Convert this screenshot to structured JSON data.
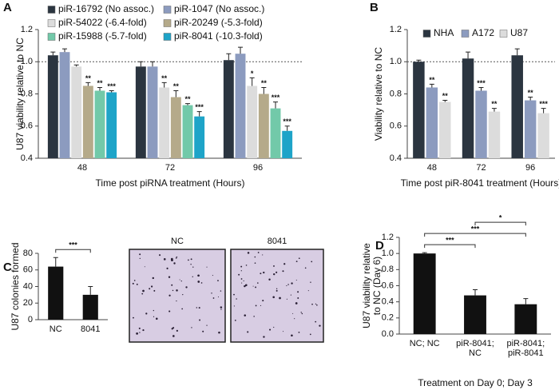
{
  "chart_data": [
    {
      "type": "bar",
      "panel": "A",
      "ylabel": "U87 viability relative to NC",
      "xlabel": "Time post piRNA treatment (Hours)",
      "categories": [
        "48",
        "72",
        "96"
      ],
      "ylim": [
        0.4,
        1.2
      ],
      "yticks": [
        0.4,
        0.6,
        0.8,
        {
          "value": 1,
          "label": "1.0"
        },
        1.2
      ],
      "reference_line": 1,
      "series": [
        {
          "name": "piR-16792 (No assoc.)",
          "color": "#2b3540",
          "values": [
            1.04,
            0.97,
            1.01
          ],
          "errors": [
            0.02,
            0.03,
            0.04
          ],
          "annotations": [
            null,
            null,
            null
          ]
        },
        {
          "name": "piR-1047 (No assoc.)",
          "color": "#8c9bbf",
          "values": [
            1.06,
            0.97,
            1.05
          ],
          "errors": [
            0.02,
            0.03,
            0.04
          ],
          "annotations": [
            null,
            null,
            null
          ]
        },
        {
          "name": "piR-54022 (-6.4-fold)",
          "color": "#dcdcdc",
          "values": [
            0.97,
            0.84,
            0.85
          ],
          "errors": [
            0.01,
            0.03,
            0.05
          ],
          "annotations": [
            null,
            "**",
            "*"
          ]
        },
        {
          "name": "piR-20249 (-5.3-fold)",
          "color": "#b5aa8a",
          "values": [
            0.85,
            0.78,
            0.8
          ],
          "errors": [
            0.02,
            0.04,
            0.04
          ],
          "annotations": [
            "**",
            "**",
            "**"
          ]
        },
        {
          "name": "piR-15988 (-5.7-fold)",
          "color": "#72c9a9",
          "values": [
            0.82,
            0.73,
            0.71
          ],
          "errors": [
            0.02,
            0.01,
            0.04
          ],
          "annotations": [
            "**",
            "**",
            "***"
          ]
        },
        {
          "name": "piR-8041 (-10.3-fold)",
          "color": "#1ea4c8",
          "values": [
            0.81,
            0.66,
            0.57
          ],
          "errors": [
            0.01,
            0.03,
            0.03
          ],
          "annotations": [
            "***",
            "***",
            "***"
          ]
        }
      ]
    },
    {
      "type": "bar",
      "panel": "B",
      "ylabel": "Viability relative to NC",
      "xlabel": "Time post piR-8041 treatment (Hours)",
      "categories": [
        "48",
        "72",
        "96"
      ],
      "ylim": [
        0.4,
        1.2
      ],
      "yticks": [
        0.4,
        0.6,
        0.8,
        {
          "value": 1,
          "label": "1.0"
        },
        1.2
      ],
      "reference_line": 1,
      "series": [
        {
          "name": "NHA",
          "color": "#2b3540",
          "values": [
            1.0,
            1.02,
            1.04
          ],
          "errors": [
            0.01,
            0.04,
            0.04
          ],
          "annotations": [
            null,
            null,
            null
          ]
        },
        {
          "name": "A172",
          "color": "#8c9bbf",
          "values": [
            0.84,
            0.82,
            0.76
          ],
          "errors": [
            0.02,
            0.02,
            0.02
          ],
          "annotations": [
            "**",
            "***",
            "**"
          ]
        },
        {
          "name": "U87",
          "color": "#dcdcdc",
          "values": [
            0.75,
            0.69,
            0.68
          ],
          "errors": [
            0.01,
            0.02,
            0.03
          ],
          "annotations": [
            "**",
            "**",
            "***"
          ]
        }
      ]
    },
    {
      "type": "bar",
      "panel": "C",
      "ylabel": "U87 colonies formed",
      "categories": [
        "NC",
        "8041"
      ],
      "values": [
        64,
        30
      ],
      "errors": [
        11,
        10
      ],
      "color": "#111111",
      "ylim": [
        0,
        80
      ],
      "yticks": [
        0,
        20,
        40,
        60,
        80
      ],
      "brackets": [
        {
          "from": "NC",
          "to": "8041",
          "label": "***"
        }
      ]
    },
    {
      "type": "bar",
      "panel": "D",
      "ylabel": "U87 viability relative to NC (Day 6)",
      "xlabel": "Treatment on Day 0; Day 3",
      "categories": [
        "NC; NC",
        "piR-8041; NC",
        "piR-8041; piR-8041"
      ],
      "values": [
        1.0,
        0.48,
        0.37
      ],
      "errors": [
        0.01,
        0.07,
        0.07
      ],
      "color": "#111111",
      "ylim": [
        0,
        1.2
      ],
      "yticks": [
        {
          "value": 0,
          "label": "0.0"
        },
        0.2,
        0.4,
        0.6,
        0.8,
        {
          "value": 1,
          "label": "1.0"
        },
        1.2
      ],
      "brackets": [
        {
          "from": "NC; NC",
          "to": "piR-8041; NC",
          "label": "***"
        },
        {
          "from": "NC; NC",
          "to": "piR-8041; piR-8041",
          "label": "***"
        },
        {
          "from": "piR-8041; NC",
          "to": "piR-8041; piR-8041",
          "label": "*"
        }
      ]
    }
  ],
  "images": [
    {
      "title": "NC"
    },
    {
      "title": "8041"
    }
  ]
}
